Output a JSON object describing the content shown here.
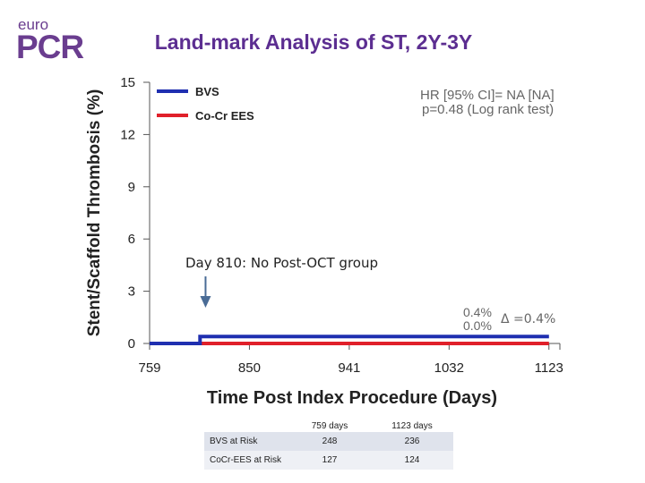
{
  "header": {
    "logo_top": "euro",
    "logo_main": "PCR",
    "title": "Land-mark Analysis of ST, 2Y-3Y"
  },
  "legend": [
    {
      "label": "BVS",
      "color": "#1f2fb0"
    },
    {
      "label": "Co-Cr EES",
      "color": "#e0202a"
    }
  ],
  "stats": {
    "line1": "HR [95% CI]= NA [NA]",
    "line2": "p=0.48 (Log rank test)"
  },
  "annotation": {
    "text": "Day 810: No Post-OCT group",
    "arrow_day": 810
  },
  "end_labels": {
    "bvs": "0.4%",
    "ees": "0.0%",
    "delta": "Δ =0.4%"
  },
  "chart_data": {
    "type": "line",
    "title": "Land-mark Analysis of ST, 2Y-3Y",
    "xlabel": "Time Post Index Procedure (Days)",
    "ylabel": "Stent/Scaffold Thrombosis (%)",
    "xlim": [
      759,
      1133
    ],
    "ylim": [
      0,
      15
    ],
    "xticks": [
      759,
      850,
      941,
      1032,
      1123
    ],
    "yticks": [
      0,
      3,
      6,
      9,
      12,
      15
    ],
    "series": [
      {
        "name": "BVS",
        "color": "#1f2fb0",
        "x": [
          759,
          805,
          805,
          1123
        ],
        "y": [
          0,
          0,
          0.4,
          0.4
        ]
      },
      {
        "name": "Co-Cr EES",
        "color": "#e0202a",
        "x": [
          759,
          1123
        ],
        "y": [
          0,
          0
        ]
      }
    ]
  },
  "risk_table": {
    "headers": [
      "759 days",
      "1123 days"
    ],
    "rows": [
      {
        "label": "BVS at Risk",
        "values": [
          "248",
          "236"
        ]
      },
      {
        "label": "CoCr-EES at Risk",
        "values": [
          "127",
          "124"
        ]
      }
    ]
  }
}
